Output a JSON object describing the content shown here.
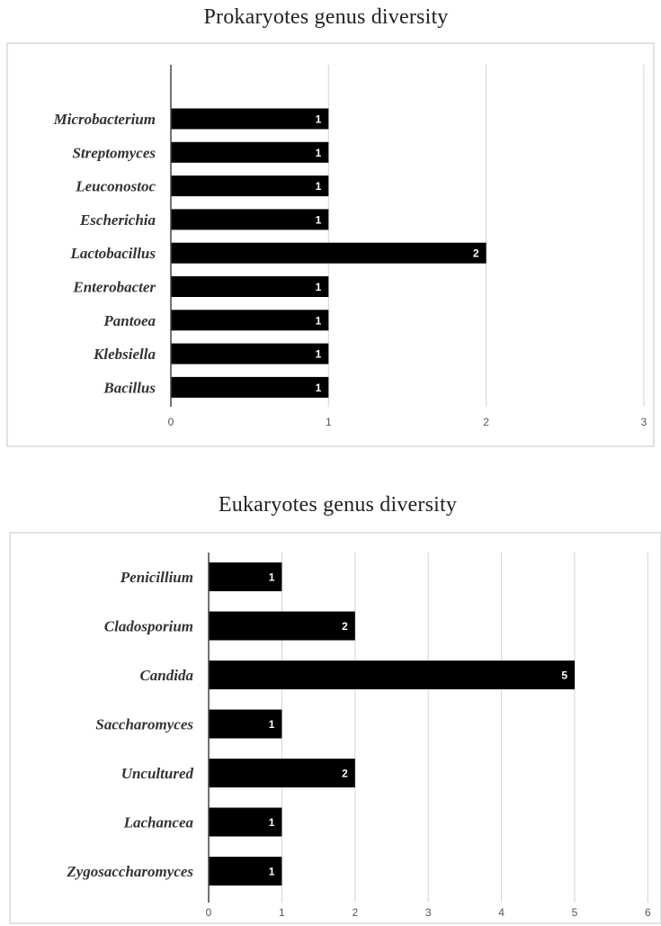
{
  "chart_data": [
    {
      "type": "bar",
      "orientation": "horizontal",
      "title": "Prokaryotes genus diversity",
      "categories": [
        "Microbacterium",
        "Streptomyces",
        "Leuconostoc",
        "Escherichia",
        "Lactobacillus",
        "Enterobacter",
        "Pantoea",
        "Klebsiella",
        "Bacillus"
      ],
      "values": [
        1,
        1,
        1,
        1,
        2,
        1,
        1,
        1,
        1
      ],
      "data_labels": [
        "1",
        "1",
        "1",
        "1",
        "2",
        "1",
        "1",
        "1",
        "1"
      ],
      "xlim": [
        0,
        3
      ],
      "ticks": [
        "0",
        "1",
        "2",
        "3"
      ],
      "bar_color": "#000000",
      "grid": true,
      "legend": "none"
    },
    {
      "type": "bar",
      "orientation": "horizontal",
      "title": "Eukaryotes genus diversity",
      "categories": [
        "Penicillium",
        "Cladosporium",
        "Candida",
        "Saccharomyces",
        "Uncultured",
        "Lachancea",
        "Zygosaccharomyces"
      ],
      "values": [
        1,
        2,
        5,
        1,
        2,
        1,
        1
      ],
      "data_labels": [
        "1",
        "2",
        "5",
        "1",
        "2",
        "1",
        "1"
      ],
      "xlim": [
        0,
        6
      ],
      "ticks": [
        "0",
        "1",
        "2",
        "3",
        "4",
        "5",
        "6"
      ],
      "bar_color": "#000000",
      "grid": true,
      "legend": "none"
    }
  ]
}
